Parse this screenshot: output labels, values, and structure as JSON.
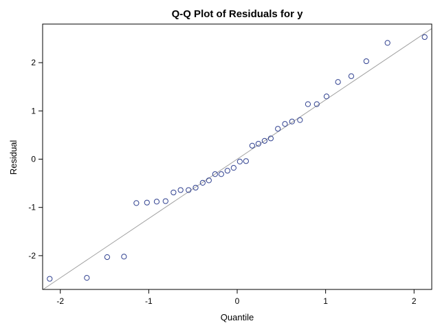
{
  "chart_data": {
    "type": "scatter",
    "title": "Q-Q Plot of Residuals for y",
    "xlabel": "Quantile",
    "ylabel": "Residual",
    "xlim": [
      -2.2,
      2.2
    ],
    "ylim": [
      -2.7,
      2.8
    ],
    "xticks": [
      -2,
      -1,
      0,
      1,
      2
    ],
    "yticks": [
      -2,
      -1,
      0,
      1,
      2
    ],
    "grid": false,
    "colors": {
      "marker": "#2e3f8f",
      "reference_line": "#a0a0a0",
      "frame": "#000000"
    },
    "reference_line": {
      "intercept": 0.0,
      "slope": 1.23
    },
    "points": [
      {
        "x": -2.12,
        "y": -2.48
      },
      {
        "x": -1.7,
        "y": -2.46
      },
      {
        "x": -1.47,
        "y": -2.03
      },
      {
        "x": -1.28,
        "y": -2.02
      },
      {
        "x": -1.14,
        "y": -0.91
      },
      {
        "x": -1.02,
        "y": -0.9
      },
      {
        "x": -0.91,
        "y": -0.88
      },
      {
        "x": -0.81,
        "y": -0.87
      },
      {
        "x": -0.72,
        "y": -0.69
      },
      {
        "x": -0.64,
        "y": -0.64
      },
      {
        "x": -0.55,
        "y": -0.64
      },
      {
        "x": -0.47,
        "y": -0.59
      },
      {
        "x": -0.39,
        "y": -0.49
      },
      {
        "x": -0.32,
        "y": -0.44
      },
      {
        "x": -0.25,
        "y": -0.31
      },
      {
        "x": -0.18,
        "y": -0.31
      },
      {
        "x": -0.11,
        "y": -0.24
      },
      {
        "x": -0.04,
        "y": -0.18
      },
      {
        "x": 0.03,
        "y": -0.05
      },
      {
        "x": 0.1,
        "y": -0.04
      },
      {
        "x": 0.17,
        "y": 0.28
      },
      {
        "x": 0.24,
        "y": 0.32
      },
      {
        "x": 0.31,
        "y": 0.38
      },
      {
        "x": 0.38,
        "y": 0.43
      },
      {
        "x": 0.46,
        "y": 0.63
      },
      {
        "x": 0.54,
        "y": 0.73
      },
      {
        "x": 0.62,
        "y": 0.78
      },
      {
        "x": 0.71,
        "y": 0.81
      },
      {
        "x": 0.8,
        "y": 1.14
      },
      {
        "x": 0.9,
        "y": 1.14
      },
      {
        "x": 1.01,
        "y": 1.3
      },
      {
        "x": 1.14,
        "y": 1.6
      },
      {
        "x": 1.29,
        "y": 1.72
      },
      {
        "x": 1.46,
        "y": 2.03
      },
      {
        "x": 1.7,
        "y": 2.41
      },
      {
        "x": 2.12,
        "y": 2.53
      }
    ]
  }
}
